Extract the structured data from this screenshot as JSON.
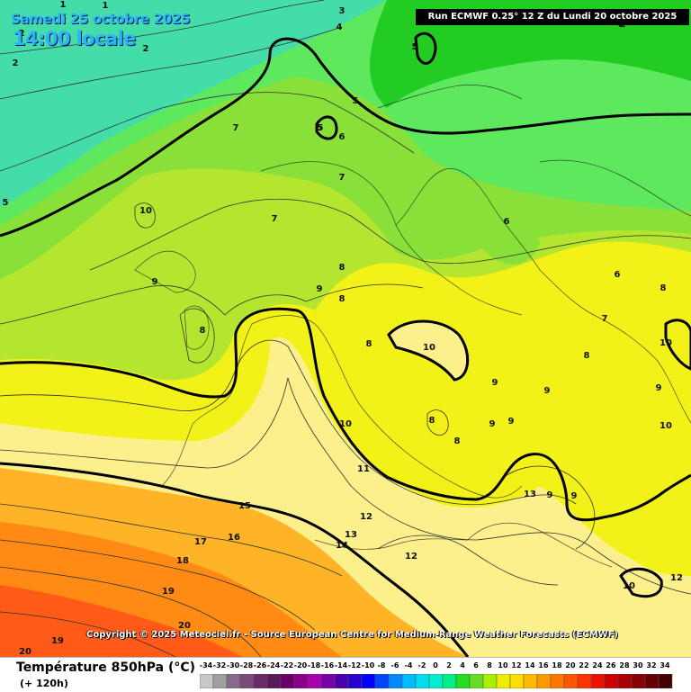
{
  "header": {
    "date": "Samedi 25 octobre 2025",
    "local_time": "14:00 locale",
    "run_info": "Run ECMWF 0.25° 12 Z du Lundi 20 octobre 2025"
  },
  "footer": {
    "copyright": "Copyright © 2025 Meteociel.fr - Source European Centre for Medium-Range Weather Forecasts (ECMWF)"
  },
  "legend": {
    "title": "Température 850hPa (°C)",
    "forecast_hour": "(+ 120h)",
    "scale_values": [
      "-34",
      "-32",
      "-30",
      "-28",
      "-26",
      "-24",
      "-22",
      "-20",
      "-18",
      "-16",
      "-14",
      "-12",
      "-10",
      "-8",
      "-6",
      "-4",
      "-2",
      "0",
      "2",
      "4",
      "6",
      "8",
      "10",
      "12",
      "14",
      "16",
      "18",
      "20",
      "22",
      "24",
      "26",
      "28",
      "30",
      "32",
      "34"
    ],
    "scale_colors": [
      "#c8c8c8",
      "#a0a0a0",
      "#8a6a8a",
      "#7a4a7a",
      "#6a2a6a",
      "#5a1a5a",
      "#6a006a",
      "#8a008a",
      "#aa00aa",
      "#7a00aa",
      "#4a00aa",
      "#2a00cc",
      "#0000ff",
      "#0044ff",
      "#0088ff",
      "#00bbff",
      "#00ddee",
      "#00eecc",
      "#00ee88",
      "#22dd22",
      "#66dd22",
      "#aaee00",
      "#eeee00",
      "#ffdd00",
      "#ffbb00",
      "#ff9900",
      "#ff7700",
      "#ff5500",
      "#ff3300",
      "#ee1100",
      "#cc0000",
      "#aa0000",
      "#880000",
      "#660000",
      "#440000"
    ]
  },
  "map_labels": [
    {
      "text": "1"
    },
    {
      "text": "1"
    },
    {
      "text": "3"
    },
    {
      "text": "4"
    },
    {
      "text": "2"
    },
    {
      "text": "2"
    },
    {
      "text": "2"
    },
    {
      "text": "2"
    },
    {
      "text": "5"
    },
    {
      "text": "5"
    },
    {
      "text": "5"
    },
    {
      "text": "5"
    },
    {
      "text": "6"
    },
    {
      "text": "6"
    },
    {
      "text": "7"
    },
    {
      "text": "7"
    },
    {
      "text": "7"
    },
    {
      "text": "6"
    },
    {
      "text": "10"
    },
    {
      "text": "9"
    },
    {
      "text": "8"
    },
    {
      "text": "8"
    },
    {
      "text": "8"
    },
    {
      "text": "9"
    },
    {
      "text": "10"
    },
    {
      "text": "8"
    },
    {
      "text": "9"
    },
    {
      "text": "9"
    },
    {
      "text": "9"
    },
    {
      "text": "8"
    },
    {
      "text": "8"
    },
    {
      "text": "9"
    },
    {
      "text": "9"
    },
    {
      "text": "10"
    },
    {
      "text": "11"
    },
    {
      "text": "12"
    },
    {
      "text": "13"
    },
    {
      "text": "13"
    },
    {
      "text": "14"
    },
    {
      "text": "12"
    },
    {
      "text": "15"
    },
    {
      "text": "16"
    },
    {
      "text": "17"
    },
    {
      "text": "18"
    },
    {
      "text": "19"
    },
    {
      "text": "20"
    },
    {
      "text": "19"
    },
    {
      "text": "20"
    },
    {
      "text": "6"
    },
    {
      "text": "8"
    },
    {
      "text": "7"
    },
    {
      "text": "8"
    },
    {
      "text": "10"
    },
    {
      "text": "9"
    },
    {
      "text": "10"
    },
    {
      "text": "9"
    },
    {
      "text": "10"
    },
    {
      "text": "12"
    },
    {
      "text": "5"
    },
    {
      "text": "5"
    }
  ]
}
